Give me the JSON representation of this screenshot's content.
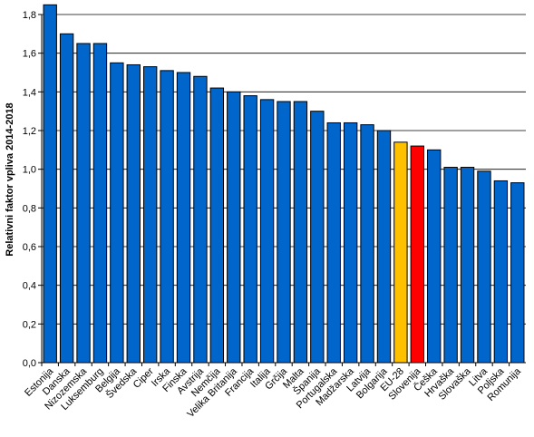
{
  "chart_data": {
    "type": "bar",
    "title": "",
    "xlabel": "",
    "ylabel": "Relativni faktor vpliva 2014-2018",
    "ylim": [
      0,
      1.8
    ],
    "yticks": [
      "0,0",
      "0,2",
      "0,4",
      "0,6",
      "0,8",
      "1,0",
      "1,2",
      "1,4",
      "1,6",
      "1,8"
    ],
    "grid": true,
    "colors": {
      "default": "#0066CC",
      "EU-28": "#FFC000",
      "Slovenija": "#FF0000"
    },
    "categories": [
      "Estonija",
      "Danska",
      "Nizozemska",
      "Luksemburg",
      "Belgija",
      "Švedska",
      "Ciper",
      "Irska",
      "Finska",
      "Avstrija",
      "Nemčija",
      "Velika Britanija",
      "Francija",
      "Italija",
      "Grčija",
      "Malta",
      "Španija",
      "Portugalska",
      "Madžarska",
      "Latvija",
      "Bolgarija",
      "EU-28",
      "Slovenija",
      "Češka",
      "Hrvaška",
      "Slovaška",
      "Litva",
      "Poljska",
      "Romunija"
    ],
    "values": [
      1.85,
      1.7,
      1.65,
      1.65,
      1.55,
      1.54,
      1.53,
      1.51,
      1.5,
      1.48,
      1.42,
      1.4,
      1.38,
      1.36,
      1.35,
      1.35,
      1.3,
      1.24,
      1.24,
      1.23,
      1.2,
      1.14,
      1.12,
      1.1,
      1.01,
      1.01,
      0.99,
      0.94,
      0.93
    ]
  }
}
